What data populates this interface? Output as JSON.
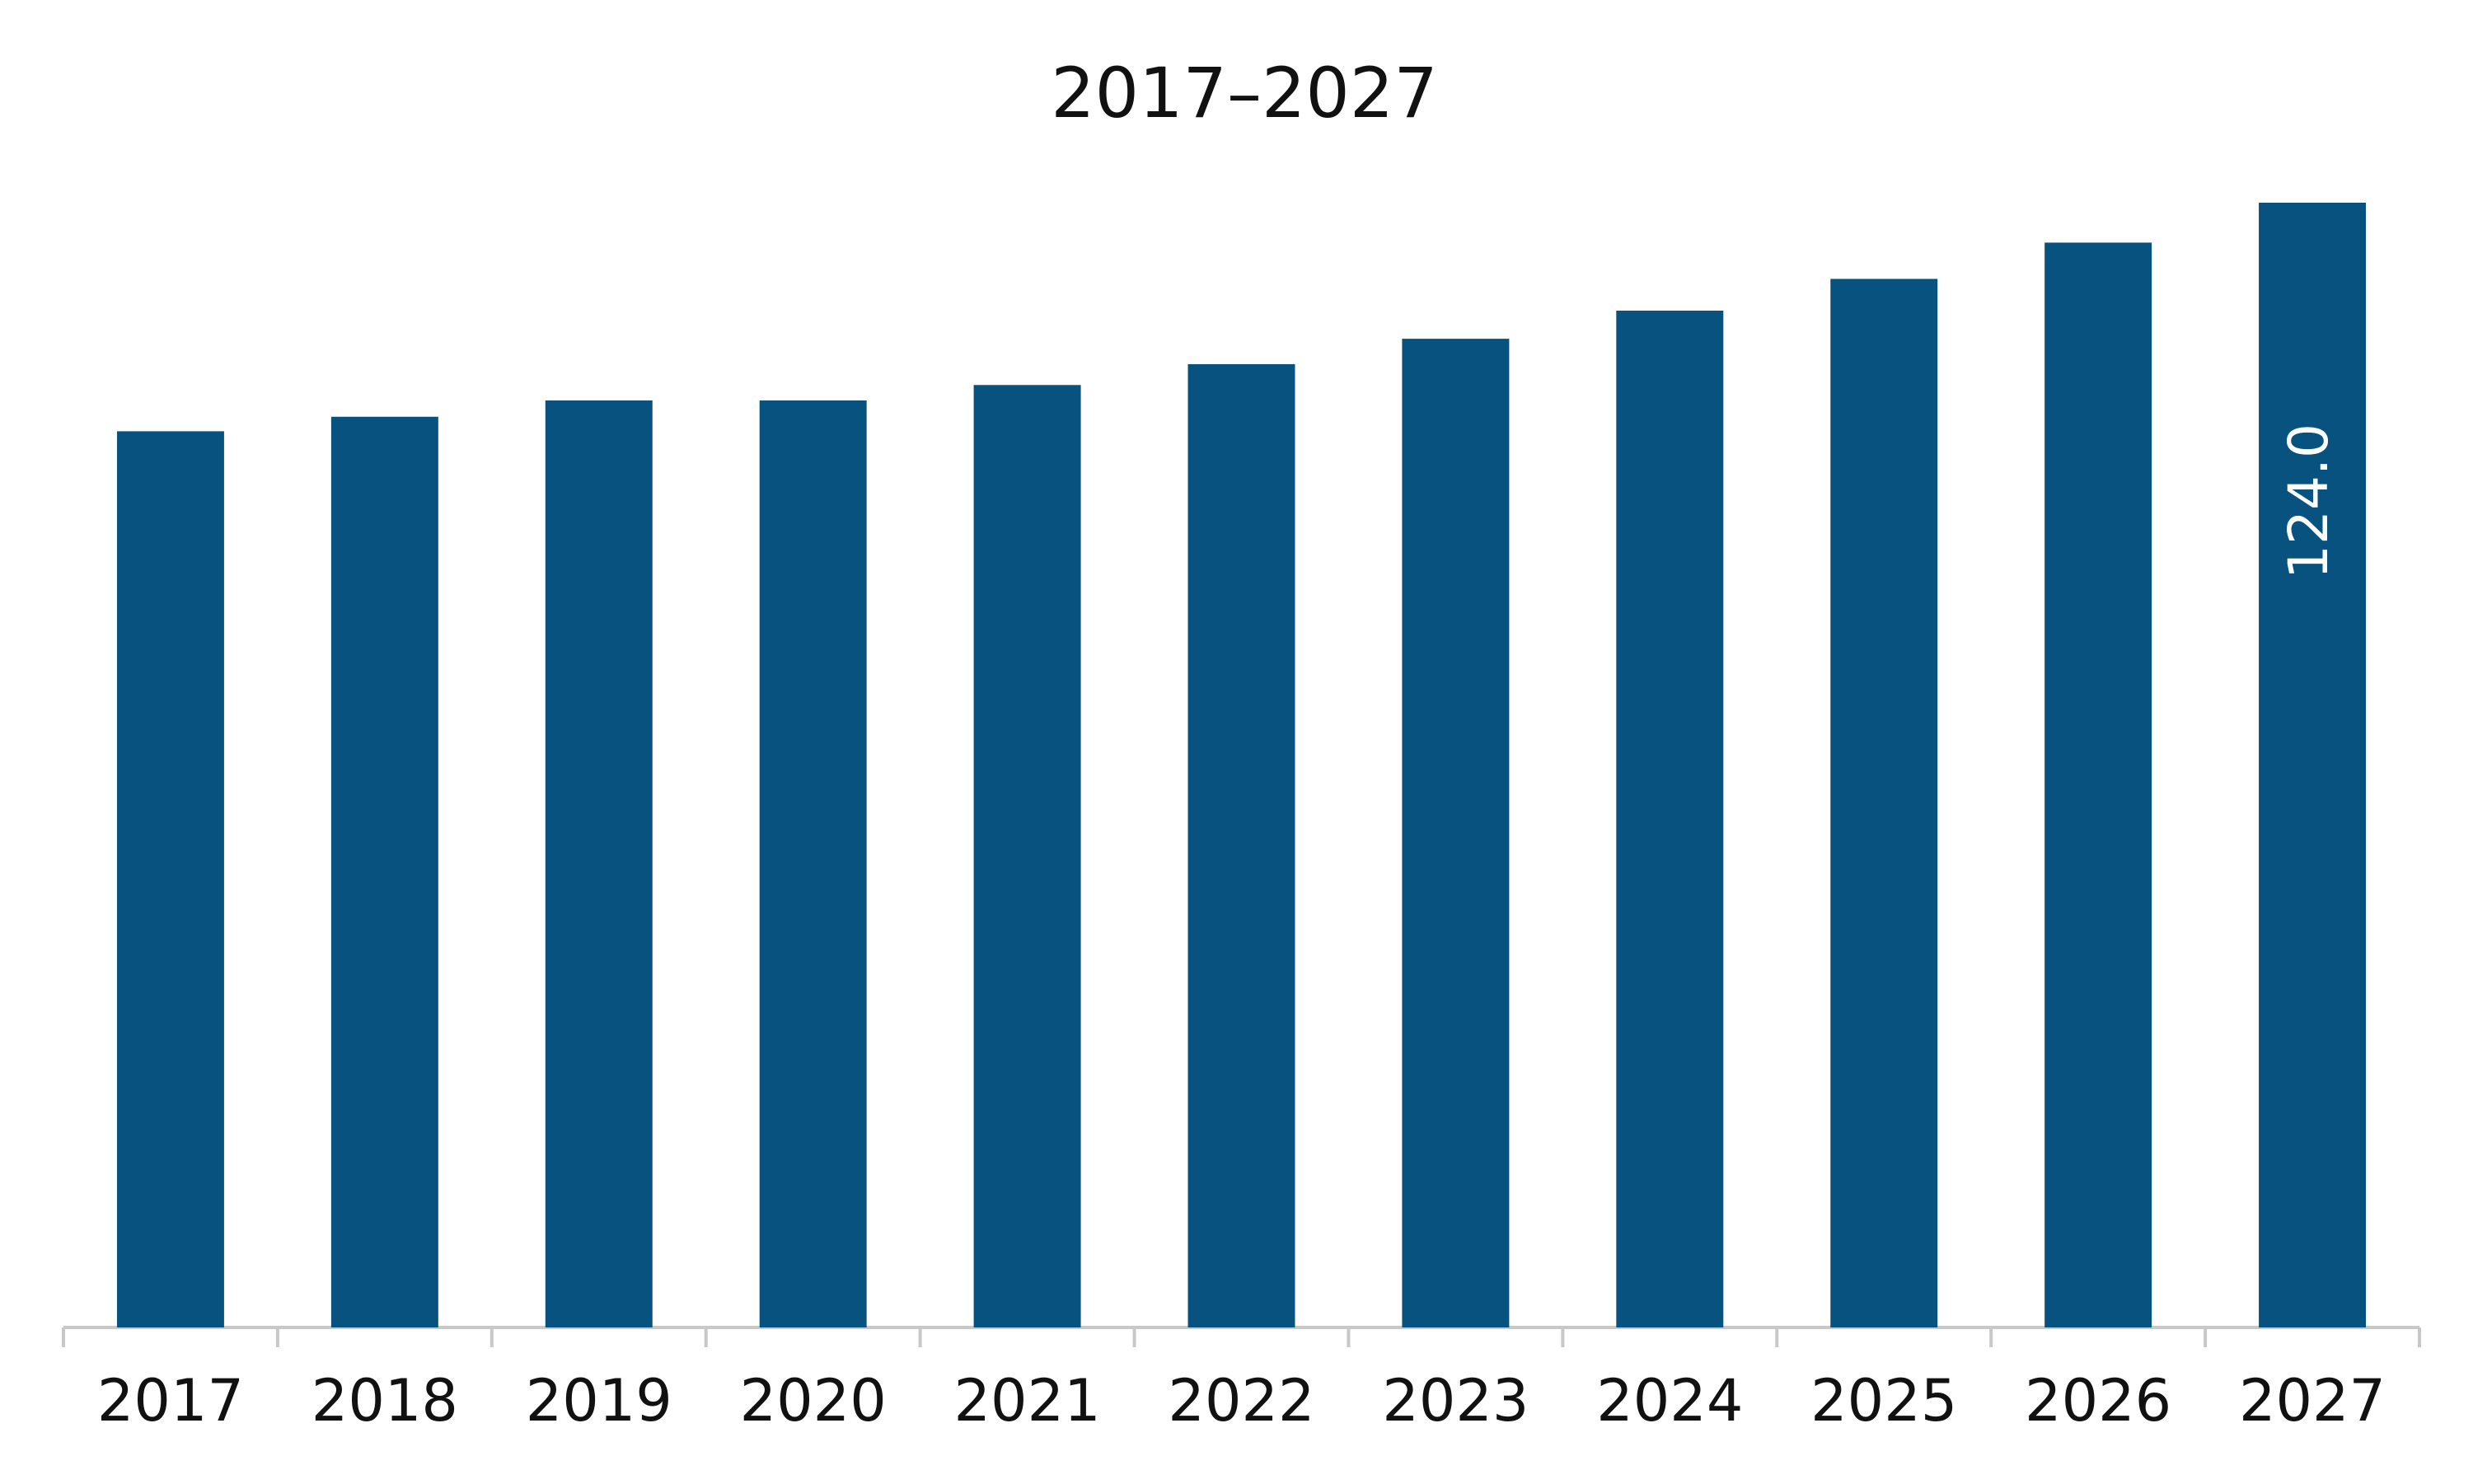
{
  "chart_data": {
    "type": "bar",
    "title": "2017–2027",
    "categories": [
      "2017",
      "2018",
      "2019",
      "2020",
      "2021",
      "2022",
      "2023",
      "2024",
      "2025",
      "2026",
      "2027"
    ],
    "values": [
      98.8,
      100.4,
      102.2,
      102.2,
      103.9,
      106.2,
      109.0,
      112.1,
      115.6,
      119.6,
      124.0
    ],
    "value_labels": [
      null,
      null,
      null,
      null,
      null,
      null,
      null,
      null,
      null,
      null,
      "124.0"
    ],
    "color": "#07527f"
  }
}
